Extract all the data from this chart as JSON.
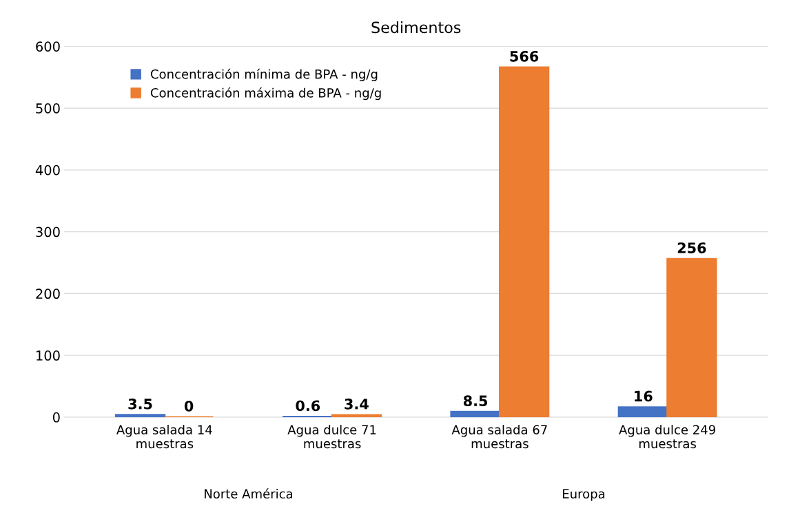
{
  "chart_data": {
    "type": "bar",
    "title": "Sedimentos",
    "categories": [
      "Agua salada 14\nmuestras",
      "Agua dulce 71\nmuestras",
      "Agua salada 67\nmuestras",
      "Agua dulce 249\nmuestras"
    ],
    "series": [
      {
        "name": "Concentración mínima de BPA - ng/g",
        "color": "#4472c4",
        "values": [
          3.5,
          0.6,
          8.5,
          16
        ]
      },
      {
        "name": "Concentración máxima de BPA - ng/g",
        "color": "#ed7d31",
        "values": [
          0,
          3.4,
          566,
          256
        ]
      }
    ],
    "ylim": [
      0,
      600
    ],
    "yticks": [
      0,
      100,
      200,
      300,
      400,
      500,
      600
    ],
    "grid": "y",
    "legend": "top left",
    "data_labels": true,
    "annotations": [
      "Norte América",
      "Europa"
    ]
  }
}
